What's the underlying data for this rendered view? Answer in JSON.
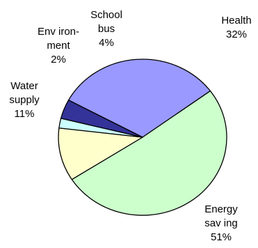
{
  "chart_data": {
    "type": "pie",
    "title": "",
    "slices": [
      {
        "name": "Health",
        "label_lines": [
          "Health",
          "32%"
        ],
        "value": 32,
        "color": "#9999ff"
      },
      {
        "name": "Energy saving",
        "label_lines": [
          "Energy",
          "sav ing",
          "51%"
        ],
        "value": 51,
        "color": "#ccffcc"
      },
      {
        "name": "Water supply",
        "label_lines": [
          "Water",
          "supply",
          "11%"
        ],
        "value": 11,
        "color": "#ffffcc"
      },
      {
        "name": "Environment",
        "label_lines": [
          "Env iron-",
          "ment",
          "2%"
        ],
        "value": 2,
        "color": "#ccffff"
      },
      {
        "name": "School bus",
        "label_lines": [
          "School",
          "bus",
          "4%"
        ],
        "value": 4,
        "color": "#333399"
      }
    ]
  }
}
